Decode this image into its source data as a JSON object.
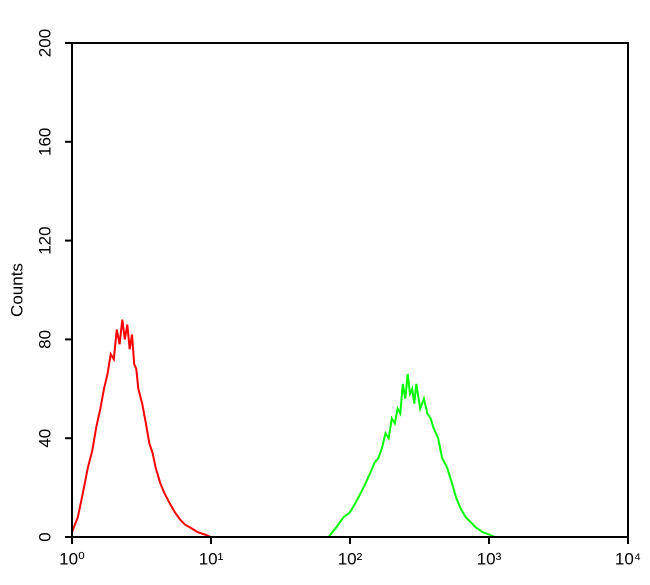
{
  "chart_data": {
    "type": "line",
    "ylabel": "Counts",
    "xscale": "log",
    "xlim": [
      1,
      10000
    ],
    "xticks": [
      {
        "value": 1,
        "label": "10⁰"
      },
      {
        "value": 10,
        "label": "10¹"
      },
      {
        "value": 100,
        "label": "10²"
      },
      {
        "value": 1000,
        "label": "10³"
      },
      {
        "value": 10000,
        "label": "10⁴"
      }
    ],
    "ylim": [
      0,
      200
    ],
    "yticks": [
      0,
      40,
      80,
      120,
      160,
      200
    ],
    "series": [
      {
        "color": "#ff0000",
        "x": [
          1.0,
          1.1,
          1.2,
          1.3,
          1.4,
          1.5,
          1.6,
          1.7,
          1.8,
          1.9,
          2.0,
          2.1,
          2.2,
          2.3,
          2.4,
          2.5,
          2.6,
          2.7,
          2.8,
          2.9,
          3.0,
          3.2,
          3.4,
          3.6,
          3.8,
          4.0,
          4.3,
          4.6,
          5.0,
          5.5,
          6.0,
          6.5,
          7.0,
          7.5,
          8.0,
          9.0,
          10
        ],
        "values": [
          2,
          8,
          18,
          28,
          35,
          45,
          52,
          60,
          66,
          74,
          72,
          84,
          78,
          88,
          80,
          86,
          76,
          82,
          70,
          68,
          60,
          54,
          46,
          38,
          34,
          28,
          22,
          18,
          14,
          10,
          7,
          5,
          4,
          3,
          2,
          1,
          0
        ]
      },
      {
        "color": "#00ff00",
        "x": [
          70,
          80,
          90,
          100,
          110,
          120,
          130,
          140,
          150,
          160,
          170,
          180,
          190,
          200,
          210,
          220,
          230,
          240,
          250,
          260,
          270,
          280,
          290,
          300,
          320,
          340,
          360,
          380,
          400,
          430,
          460,
          500,
          540,
          580,
          620,
          680,
          740,
          800,
          900,
          1000,
          1100
        ],
        "values": [
          0,
          4,
          8,
          10,
          14,
          18,
          22,
          26,
          30,
          32,
          36,
          42,
          40,
          48,
          46,
          52,
          50,
          62,
          56,
          66,
          58,
          60,
          54,
          62,
          52,
          56,
          50,
          48,
          44,
          40,
          32,
          28,
          22,
          16,
          12,
          8,
          6,
          4,
          2,
          1,
          0
        ]
      }
    ]
  }
}
